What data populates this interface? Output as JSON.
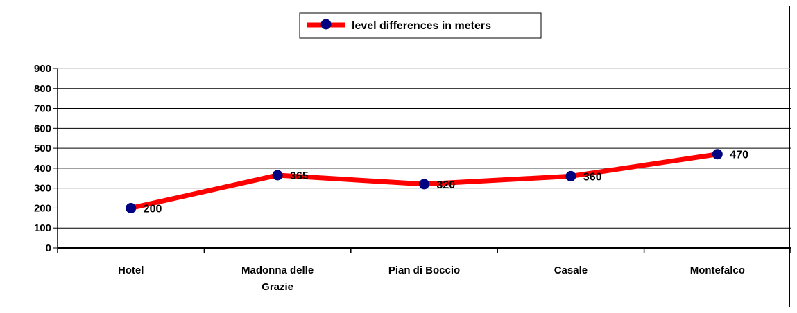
{
  "chart_data": {
    "type": "line",
    "categories": [
      [
        "Hotel"
      ],
      [
        "Madonna delle",
        "Grazie"
      ],
      [
        "Pian di Boccio"
      ],
      [
        "Casale"
      ],
      [
        "Montefalco"
      ]
    ],
    "series": [
      {
        "name": "level differences in meters",
        "values": [
          200,
          365,
          320,
          360,
          470
        ],
        "color": "#ff0000",
        "marker_color": "#000080"
      }
    ],
    "ylim": [
      0,
      900
    ],
    "yticks": [
      "0",
      "100",
      "200",
      "300",
      "400",
      "500",
      "600",
      "700",
      "800",
      "900"
    ],
    "data_labels": [
      "200",
      "365",
      "320",
      "360",
      "470"
    ],
    "grid": true,
    "legend": "top-center",
    "xlabel": "",
    "ylabel": ""
  }
}
